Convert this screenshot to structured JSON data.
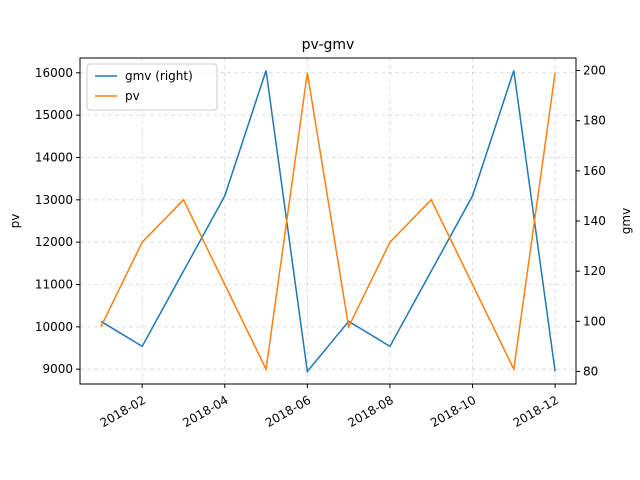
{
  "chart_data": {
    "type": "line",
    "title": "pv-gmv",
    "xlabel": "",
    "ylabel_left": "pv",
    "ylabel_right": "gmv",
    "x": [
      "2018-01",
      "2018-02",
      "2018-03",
      "2018-04",
      "2018-05",
      "2018-06",
      "2018-07",
      "2018-08",
      "2018-09",
      "2018-10",
      "2018-11",
      "2018-12"
    ],
    "x_ticks": [
      "2018-02",
      "2018-04",
      "2018-06",
      "2018-08",
      "2018-10",
      "2018-12"
    ],
    "ylim_left": [
      8650,
      16350
    ],
    "ylim_right": [
      75,
      205
    ],
    "yticks_left": [
      9000,
      10000,
      11000,
      12000,
      13000,
      14000,
      15000,
      16000
    ],
    "yticks_right": [
      80,
      100,
      120,
      140,
      160,
      180,
      200
    ],
    "grid": true,
    "legend_position": "top-left",
    "series": [
      {
        "name": "gmv (right)",
        "axis": "right",
        "color": "#1f77b4",
        "values": [
          100,
          90,
          120,
          150,
          200,
          80,
          100,
          90,
          120,
          150,
          200,
          80
        ]
      },
      {
        "name": "pv",
        "axis": "left",
        "color": "#ff7f0e",
        "values": [
          10000,
          12000,
          13000,
          11000,
          9000,
          16000,
          10000,
          12000,
          13000,
          11000,
          9000,
          16000
        ]
      }
    ]
  }
}
